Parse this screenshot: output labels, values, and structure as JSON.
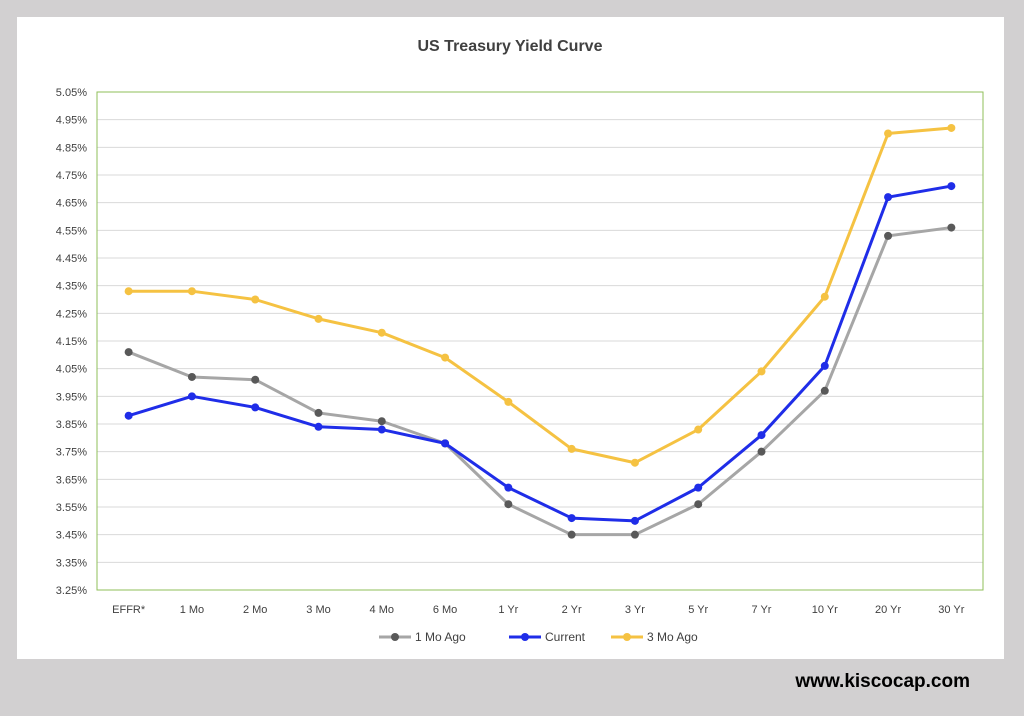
{
  "chart_data": {
    "type": "line",
    "title": "US Treasury Yield Curve",
    "xlabel": "",
    "ylabel": "",
    "ylim": [
      3.25,
      5.05
    ],
    "ytick_step": 0.1,
    "ytick_suffix": "%",
    "grid": true,
    "legend_position": "bottom",
    "categories": [
      "EFFR*",
      "1 Mo",
      "2 Mo",
      "3 Mo",
      "4 Mo",
      "6 Mo",
      "1 Yr",
      "2 Yr",
      "3 Yr",
      "5 Yr",
      "7 Yr",
      "10 Yr",
      "20 Yr",
      "30 Yr"
    ],
    "series": [
      {
        "name": "1 Mo Ago",
        "line_color": "#a6a6a6",
        "marker_color": "#595959",
        "values": [
          4.11,
          4.02,
          4.01,
          3.89,
          3.86,
          3.78,
          3.56,
          3.45,
          3.45,
          3.56,
          3.75,
          3.97,
          4.53,
          4.56
        ]
      },
      {
        "name": "Current",
        "line_color": "#1f2de8",
        "marker_color": "#1f2de8",
        "values": [
          3.88,
          3.95,
          3.91,
          3.84,
          3.83,
          3.78,
          3.62,
          3.51,
          3.5,
          3.62,
          3.81,
          4.06,
          4.67,
          4.71
        ]
      },
      {
        "name": "3 Mo Ago",
        "line_color": "#f5c242",
        "marker_color": "#f5c242",
        "values": [
          4.33,
          4.33,
          4.3,
          4.23,
          4.18,
          4.09,
          3.93,
          3.76,
          3.71,
          3.83,
          4.04,
          4.31,
          4.9,
          4.92
        ]
      }
    ]
  },
  "footer": {
    "text": "www.kiscocap.com"
  }
}
